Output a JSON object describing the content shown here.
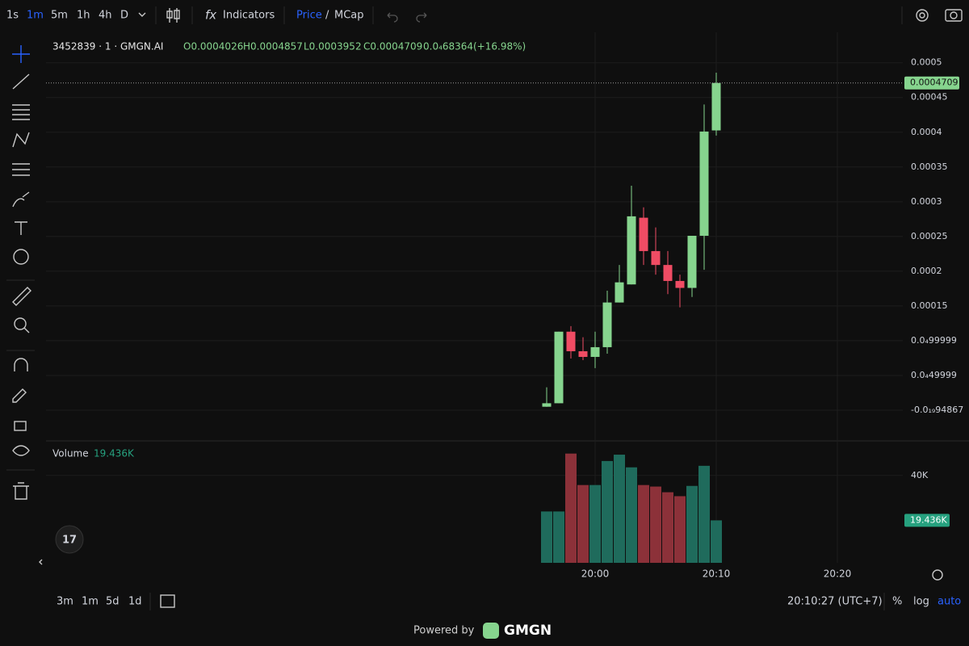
{
  "ui": {
    "intervals": [
      "1s",
      "1m",
      "5m",
      "1h",
      "4h",
      "D"
    ],
    "active_interval": "1m",
    "indicators": "Indicators",
    "price": "Price",
    "slash": "/",
    "mcap": "MCap",
    "legend": {
      "symbol": "3452839 · 1 · GMGN.AI",
      "open": "O0.0004026",
      "high": "H0.0004857",
      "low": "L0.0003952",
      "close": "C0.0004709",
      "change": "0.0₄68364",
      "change_pct": "(+16.98%)"
    },
    "volume_title": "Volume",
    "ranges": [
      "3m",
      "1m",
      "5d",
      "1d"
    ],
    "clock": "20:10:27 (UTC+7)",
    "percent": "%",
    "log": "log",
    "auto": "auto",
    "powered_by": "Powered by",
    "brand": "GMGN"
  },
  "chart_data": [
    {
      "type": "candlestick",
      "up_color": "#86d48e",
      "down_color": "#f04c64",
      "x": [
        "19:56",
        "19:57",
        "19:58",
        "19:59",
        "20:00",
        "20:01",
        "20:02",
        "20:03",
        "20:04",
        "20:05",
        "20:06",
        "20:07",
        "20:08",
        "20:09",
        "20:10"
      ],
      "open": [
        5e-06,
        1e-05,
        0.000113,
        8.49e-05,
        7.67e-05,
        9.07e-05,
        0.000155,
        0.000181,
        0.000277,
        0.000229,
        0.000209,
        0.000186,
        0.000176,
        0.000251,
        0.0004026
      ],
      "high": [
        3.3e-05,
        0.000113,
        0.000121,
        0.000105,
        0.000113,
        0.000172,
        0.000209,
        0.000323,
        0.000292,
        0.000263,
        0.000229,
        0.000195,
        0.000251,
        0.00044,
        0.0004857
      ],
      "low": [
        5e-06,
        1e-05,
        7.44e-05,
        7.2e-05,
        6.05e-05,
        8.14e-05,
        0.000155,
        0.000181,
        0.000209,
        0.000195,
        0.000167,
        0.000148,
        0.000163,
        0.000202,
        0.0003952
      ],
      "close": [
        1e-05,
        0.000113,
        8.49e-05,
        7.67e-05,
        9.07e-05,
        0.000155,
        0.000184,
        0.000279,
        0.000229,
        0.000209,
        0.000186,
        0.000176,
        0.000251,
        0.000401,
        0.0004709
      ],
      "xlim": [
        "19:15",
        "20:25"
      ],
      "xticks": [
        "20:00",
        "20:10",
        "20:20"
      ],
      "ylim": [
        -4.3e-05,
        0.000538
      ],
      "yticks": [
        0.0005,
        0.00045,
        0.0004,
        0.00035,
        0.0003,
        0.00025,
        0.0002,
        0.00015,
        {
          "value": 9.9999e-05,
          "label": "0.0₄99999"
        },
        {
          "value": 4.9999e-05,
          "label": "0.0₄49999"
        },
        {
          "value": -9.4867e-20,
          "label": "-0.0₁₉94867"
        }
      ],
      "grid": true
    },
    {
      "type": "bar",
      "up_color": "#1f6b5c",
      "down_color": "#8c3139",
      "x": [
        "19:56",
        "19:57",
        "19:58",
        "19:59",
        "20:00",
        "20:01",
        "20:02",
        "20:03",
        "20:04",
        "20:05",
        "20:06",
        "20:07",
        "20:08",
        "20:09",
        "20:10"
      ],
      "values": [
        23500,
        23500,
        50000,
        35600,
        35600,
        46600,
        49500,
        43700,
        35600,
        34900,
        32300,
        30500,
        35200,
        44400,
        19436
      ],
      "value_labels": [
        null,
        null,
        null,
        null,
        null,
        null,
        null,
        null,
        null,
        null,
        null,
        null,
        null,
        null,
        "19.436K"
      ],
      "ylim": [
        0,
        55800
      ],
      "yticks": [
        {
          "value": 40000,
          "label": "40K"
        }
      ],
      "grid": true
    }
  ]
}
